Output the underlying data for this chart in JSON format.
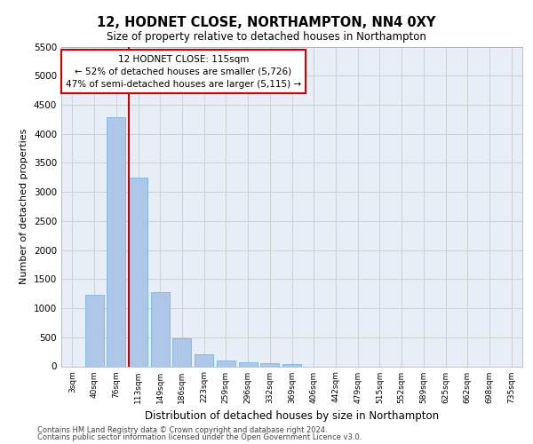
{
  "title_line1": "12, HODNET CLOSE, NORTHAMPTON, NN4 0XY",
  "title_line2": "Size of property relative to detached houses in Northampton",
  "xlabel": "Distribution of detached houses by size in Northampton",
  "ylabel": "Number of detached properties",
  "footer_line1": "Contains HM Land Registry data © Crown copyright and database right 2024.",
  "footer_line2": "Contains public sector information licensed under the Open Government Licence v3.0.",
  "annotation_line1": "12 HODNET CLOSE: 115sqm",
  "annotation_line2": "← 52% of detached houses are smaller (5,726)",
  "annotation_line3": "47% of semi-detached houses are larger (5,115) →",
  "categories": [
    "3sqm",
    "40sqm",
    "76sqm",
    "113sqm",
    "149sqm",
    "186sqm",
    "223sqm",
    "259sqm",
    "296sqm",
    "332sqm",
    "369sqm",
    "406sqm",
    "442sqm",
    "479sqm",
    "515sqm",
    "552sqm",
    "589sqm",
    "625sqm",
    "662sqm",
    "698sqm",
    "735sqm"
  ],
  "values": [
    0,
    1230,
    4280,
    3250,
    1280,
    480,
    210,
    100,
    65,
    55,
    45,
    0,
    0,
    0,
    0,
    0,
    0,
    0,
    0,
    0,
    0
  ],
  "bar_color": "#aec6e8",
  "bar_edge_color": "#6aaed6",
  "ylim": [
    0,
    5500
  ],
  "yticks": [
    0,
    500,
    1000,
    1500,
    2000,
    2500,
    3000,
    3500,
    4000,
    4500,
    5000,
    5500
  ],
  "grid_color": "#cccccc",
  "face_color": "#e8eef8",
  "annotation_box_color": "#ffffff",
  "annotation_box_edge_color": "#cc0000",
  "red_line_color": "#cc0000",
  "red_line_bin_index": 3
}
